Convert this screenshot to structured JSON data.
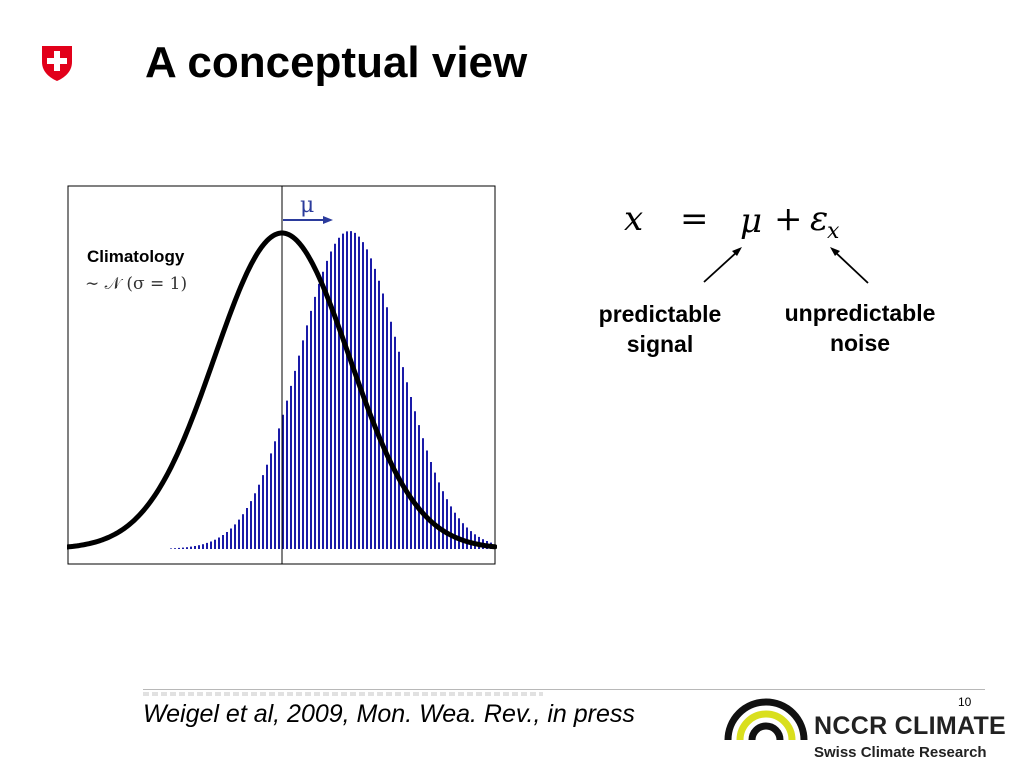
{
  "title": "A conceptual view",
  "plot": {
    "climatology_label": "Climatology",
    "distribution_label": "∼ 𝒩 (σ = 1)",
    "shift_label": "μ",
    "shift_mu": 1.0,
    "climatology_sigma": 1.0,
    "colors": {
      "curve": "#000000",
      "bars": "#1a1aa8",
      "arrow": "#2b3b9c",
      "frame": "#000000"
    }
  },
  "equation": {
    "x": "x",
    "equals": "=",
    "mu": "μ",
    "plus": "+",
    "epsilon": "ε",
    "subscript": "x"
  },
  "labels": {
    "signal_line1": "predictable",
    "signal_line2": "signal",
    "noise_line1": "unpredictable",
    "noise_line2": "noise"
  },
  "footer": {
    "citation": "Weigel et al, 2009, Mon. Wea. Rev., in press",
    "page_number": "10",
    "logo_name": "NCCR CLIMATE",
    "logo_subtitle": "Swiss Climate Research",
    "logo_colors": {
      "dark": "#111111",
      "accent": "#d9df1e"
    }
  },
  "brand": {
    "shield_color": "#e2001a",
    "cross_color": "#ffffff"
  }
}
